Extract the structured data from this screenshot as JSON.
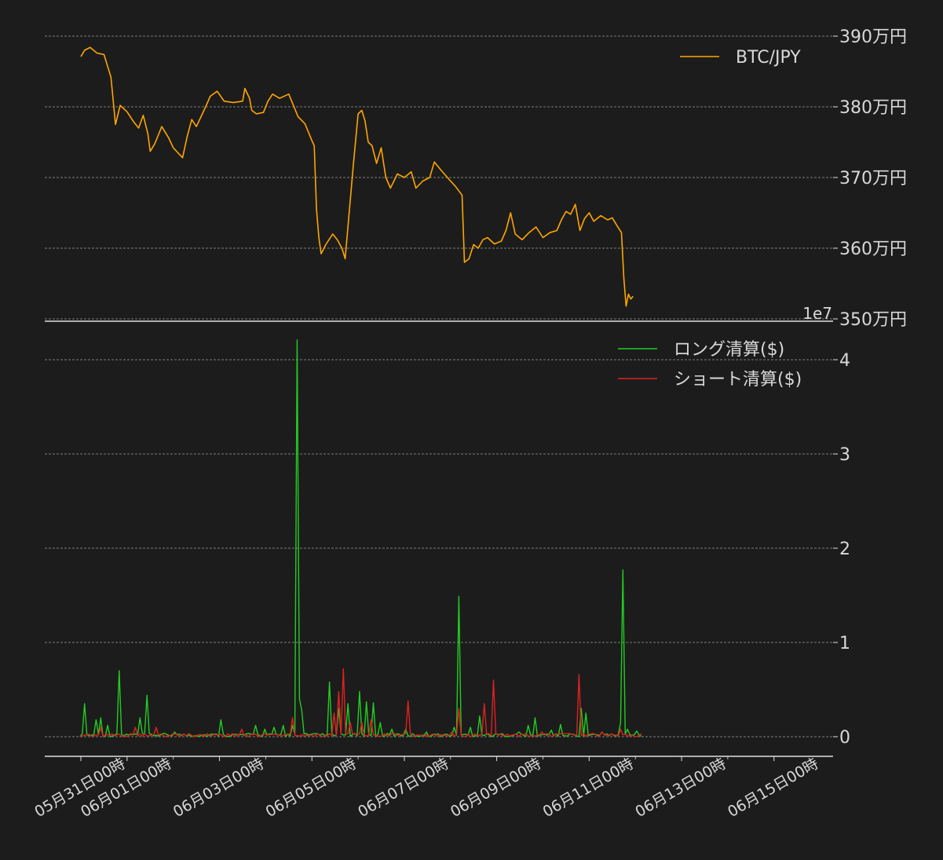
{
  "chart_data": [
    {
      "type": "line",
      "series": [
        {
          "name": "BTC/JPY",
          "color": "#ffa500",
          "points": [
            [
              0.0,
              3871
            ],
            [
              0.08,
              3880
            ],
            [
              0.2,
              3884
            ],
            [
              0.35,
              3876
            ],
            [
              0.5,
              3874
            ],
            [
              0.65,
              3842
            ],
            [
              0.75,
              3775
            ],
            [
              0.85,
              3802
            ],
            [
              1.0,
              3793
            ],
            [
              1.15,
              3778
            ],
            [
              1.25,
              3770
            ],
            [
              1.35,
              3788
            ],
            [
              1.45,
              3762
            ],
            [
              1.5,
              3737
            ],
            [
              1.6,
              3748
            ],
            [
              1.75,
              3772
            ],
            [
              1.9,
              3756
            ],
            [
              2.0,
              3742
            ],
            [
              2.1,
              3735
            ],
            [
              2.2,
              3728
            ],
            [
              2.3,
              3758
            ],
            [
              2.4,
              3782
            ],
            [
              2.5,
              3772
            ],
            [
              2.6,
              3786
            ],
            [
              2.7,
              3800
            ],
            [
              2.8,
              3815
            ],
            [
              2.95,
              3822
            ],
            [
              3.1,
              3808
            ],
            [
              3.3,
              3806
            ],
            [
              3.5,
              3808
            ],
            [
              3.55,
              3826
            ],
            [
              3.65,
              3812
            ],
            [
              3.7,
              3795
            ],
            [
              3.8,
              3790
            ],
            [
              3.95,
              3792
            ],
            [
              4.05,
              3808
            ],
            [
              4.15,
              3818
            ],
            [
              4.3,
              3812
            ],
            [
              4.5,
              3818
            ],
            [
              4.6,
              3802
            ],
            [
              4.7,
              3786
            ],
            [
              4.85,
              3776
            ],
            [
              5.0,
              3752
            ],
            [
              5.05,
              3745
            ],
            [
              5.1,
              3655
            ],
            [
              5.15,
              3615
            ],
            [
              5.2,
              3592
            ],
            [
              5.3,
              3605
            ],
            [
              5.45,
              3620
            ],
            [
              5.55,
              3612
            ],
            [
              5.65,
              3600
            ],
            [
              5.72,
              3585
            ],
            [
              5.8,
              3645
            ],
            [
              5.9,
              3720
            ],
            [
              6.0,
              3790
            ],
            [
              6.08,
              3795
            ],
            [
              6.15,
              3780
            ],
            [
              6.22,
              3750
            ],
            [
              6.3,
              3745
            ],
            [
              6.4,
              3720
            ],
            [
              6.5,
              3742
            ],
            [
              6.6,
              3700
            ],
            [
              6.7,
              3685
            ],
            [
              6.85,
              3705
            ],
            [
              7.0,
              3700
            ],
            [
              7.15,
              3708
            ],
            [
              7.25,
              3685
            ],
            [
              7.4,
              3695
            ],
            [
              7.55,
              3700
            ],
            [
              7.65,
              3722
            ],
            [
              7.8,
              3710
            ],
            [
              8.0,
              3695
            ],
            [
              8.1,
              3688
            ],
            [
              8.25,
              3675
            ],
            [
              8.3,
              3580
            ],
            [
              8.4,
              3585
            ],
            [
              8.5,
              3605
            ],
            [
              8.6,
              3600
            ],
            [
              8.7,
              3612
            ],
            [
              8.8,
              3615
            ],
            [
              8.95,
              3606
            ],
            [
              9.1,
              3610
            ],
            [
              9.2,
              3625
            ],
            [
              9.3,
              3650
            ],
            [
              9.4,
              3620
            ],
            [
              9.55,
              3612
            ],
            [
              9.7,
              3622
            ],
            [
              9.85,
              3630
            ],
            [
              10.0,
              3615
            ],
            [
              10.15,
              3622
            ],
            [
              10.3,
              3625
            ],
            [
              10.4,
              3640
            ],
            [
              10.5,
              3652
            ],
            [
              10.6,
              3648
            ],
            [
              10.7,
              3662
            ],
            [
              10.8,
              3625
            ],
            [
              10.9,
              3642
            ],
            [
              11.0,
              3650
            ],
            [
              11.1,
              3638
            ],
            [
              11.25,
              3646
            ],
            [
              11.4,
              3640
            ],
            [
              11.5,
              3643
            ],
            [
              11.6,
              3632
            ],
            [
              11.7,
              3622
            ],
            [
              11.75,
              3558
            ],
            [
              11.8,
              3518
            ],
            [
              11.85,
              3535
            ],
            [
              11.9,
              3528
            ],
            [
              11.95,
              3532
            ]
          ]
        }
      ],
      "y_tick_labels": [
        "350万円",
        "360万円",
        "370万円",
        "380万円",
        "390万円"
      ],
      "y_ticks": [
        3500,
        3600,
        3700,
        3800,
        3900
      ],
      "ylim": [
        3500,
        3910
      ],
      "y_unit": "万円",
      "legend": "top-right",
      "grid": "horizontal dashed"
    },
    {
      "type": "line",
      "scale_label": "1e7",
      "series": [
        {
          "name": "ロング清算($)",
          "color": "#22cc22",
          "peaks": [
            [
              0.1,
              0.35
            ],
            [
              0.35,
              0.18
            ],
            [
              0.45,
              0.2
            ],
            [
              0.6,
              0.12
            ],
            [
              0.85,
              0.7
            ],
            [
              1.3,
              0.2
            ],
            [
              1.45,
              0.44
            ],
            [
              2.05,
              0.05
            ],
            [
              3.05,
              0.18
            ],
            [
              3.8,
              0.12
            ],
            [
              4.0,
              0.08
            ],
            [
              4.2,
              0.1
            ],
            [
              4.4,
              0.12
            ],
            [
              4.6,
              0.12
            ],
            [
              4.68,
              4.21
            ],
            [
              4.75,
              0.4
            ],
            [
              4.8,
              0.28
            ],
            [
              5.05,
              0.03
            ],
            [
              5.4,
              0.58
            ],
            [
              5.6,
              0.3
            ],
            [
              5.8,
              0.35
            ],
            [
              6.05,
              0.48
            ],
            [
              6.2,
              0.37
            ],
            [
              6.35,
              0.36
            ],
            [
              6.5,
              0.15
            ],
            [
              6.75,
              0.08
            ],
            [
              7.05,
              0.08
            ],
            [
              7.5,
              0.05
            ],
            [
              8.1,
              0.1
            ],
            [
              8.2,
              1.49
            ],
            [
              8.45,
              0.1
            ],
            [
              8.65,
              0.22
            ],
            [
              9.1,
              0.03
            ],
            [
              9.5,
              0.05
            ],
            [
              9.7,
              0.12
            ],
            [
              9.85,
              0.2
            ],
            [
              10.2,
              0.07
            ],
            [
              10.4,
              0.13
            ],
            [
              10.85,
              0.3
            ],
            [
              10.95,
              0.25
            ],
            [
              11.3,
              0.05
            ],
            [
              11.7,
              0.15
            ],
            [
              11.75,
              1.77
            ],
            [
              11.85,
              0.08
            ],
            [
              12.05,
              0.06
            ]
          ]
        },
        {
          "name": "ショート清算($)",
          "color": "#dd2222",
          "peaks": [
            [
              0.45,
              0.1
            ],
            [
              1.2,
              0.1
            ],
            [
              1.65,
              0.1
            ],
            [
              3.5,
              0.08
            ],
            [
              4.6,
              0.2
            ],
            [
              5.5,
              0.25
            ],
            [
              5.6,
              0.48
            ],
            [
              5.7,
              0.72
            ],
            [
              5.85,
              0.15
            ],
            [
              6.1,
              0.15
            ],
            [
              6.3,
              0.18
            ],
            [
              7.1,
              0.38
            ],
            [
              8.05,
              0.05
            ],
            [
              8.2,
              0.3
            ],
            [
              8.75,
              0.35
            ],
            [
              8.95,
              0.6
            ],
            [
              10.0,
              0.05
            ],
            [
              10.8,
              0.66
            ],
            [
              11.3,
              0.05
            ],
            [
              11.72,
              0.08
            ]
          ]
        }
      ],
      "y_ticks": [
        0,
        1,
        2,
        3,
        4
      ],
      "y_tick_labels": [
        "0",
        "1",
        "2",
        "3",
        "4"
      ],
      "ylim": [
        -0.2,
        4.25
      ],
      "legend": "top-right",
      "grid": "horizontal dashed"
    }
  ],
  "x_axis": {
    "tick_labels": [
      "05月31日00時",
      "06月01日00時",
      "06月03日00時",
      "06月05日00時",
      "06月07日00時",
      "06月09日00時",
      "06月11日00時",
      "06月13日00時",
      "06月15日00時"
    ],
    "tick_days": [
      0,
      1,
      3,
      5,
      7,
      9,
      11,
      13,
      15
    ],
    "minor_tick_days": [
      2,
      4,
      6,
      8,
      10,
      12,
      14
    ],
    "unit": "days since 05月31日00時",
    "xlim": [
      -0.8,
      16.2
    ]
  },
  "colors": {
    "background": "#1c1c1c",
    "text": "#d8d8d8",
    "grid": "#bbbbbb",
    "axis_line": "#e0e0e0"
  }
}
